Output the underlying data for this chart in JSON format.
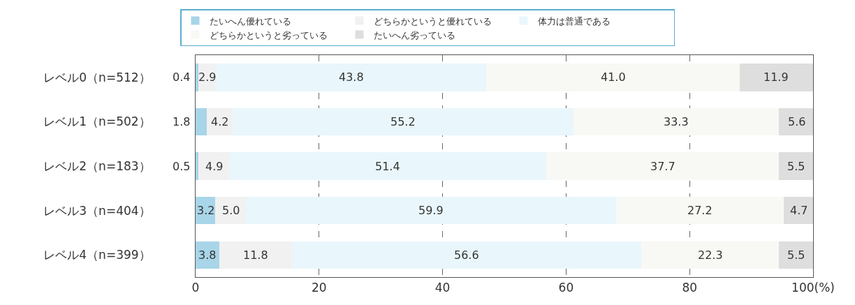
{
  "chart_data": {
    "type": "bar",
    "orientation": "horizontal",
    "stacked": true,
    "categories": [
      "レベル0（n=512）",
      "レベル1（n=502）",
      "レベル2（n=183）",
      "レベル3（n=404）",
      "レベル4（n=399）"
    ],
    "series": [
      {
        "name": "たいへん優れている",
        "color": "#a8d5e8",
        "values": [
          0.4,
          1.8,
          0.5,
          3.2,
          3.8
        ],
        "value_labels": [
          "0.4",
          "1.8",
          "0.5",
          "3.2",
          "3.8"
        ]
      },
      {
        "name": "どちらかというと優れている",
        "color": "#f1f1f1",
        "values": [
          2.9,
          4.2,
          4.9,
          5.0,
          11.8
        ],
        "value_labels": [
          "2.9",
          "4.2",
          "4.9",
          "5.0",
          "11.8"
        ]
      },
      {
        "name": "体力は普通である",
        "color": "#e9f7fc",
        "values": [
          43.8,
          55.2,
          51.4,
          59.9,
          56.6
        ],
        "value_labels": [
          "43.8",
          "55.2",
          "51.4",
          "59.9",
          "56.6"
        ]
      },
      {
        "name": "どちらかというと劣っている",
        "color": "#f8f8f4",
        "values": [
          41.0,
          33.3,
          37.7,
          27.2,
          22.3
        ],
        "value_labels": [
          "41.0",
          "33.3",
          "37.7",
          "27.2",
          "22.3"
        ]
      },
      {
        "name": "たいへん劣っている",
        "color": "#dedede",
        "values": [
          11.9,
          5.6,
          5.5,
          4.7,
          5.5
        ],
        "value_labels": [
          "11.9",
          "5.6",
          "5.5",
          "4.7",
          "5.5"
        ]
      }
    ],
    "xlim": [
      0,
      100
    ],
    "xticks": [
      0,
      20,
      40,
      60,
      80,
      {
        "value": 100,
        "label": "100(%)"
      }
    ],
    "grid": "x",
    "legend": "top"
  }
}
